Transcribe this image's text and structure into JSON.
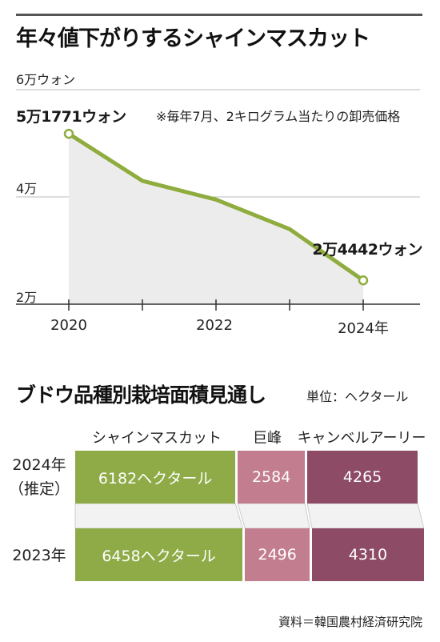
{
  "line_chart": {
    "title": "年々値下がりするシャインマスカット",
    "note": "※毎年7月、2キログラム当たりの卸売価格",
    "unit_label": "6万ウォン",
    "ytick_labels": [
      "4万",
      "2万"
    ],
    "xtick_labels": [
      "2020",
      "2022",
      "2024年"
    ],
    "start_label": "5万1771ウォン",
    "end_label": "2万4442ウォン",
    "line_color": "#8fac3e",
    "fill_color": "#ececec"
  },
  "bar_chart": {
    "title": "ブドウ品種別栽培面積見通し",
    "unit": "単位：ヘクタール",
    "column_headers": [
      "シャインマスカット",
      "巨峰",
      "キャンベルアーリー"
    ],
    "row_labels": [
      "2024年\n（推定）",
      "2023年"
    ],
    "rows": [
      {
        "labels": [
          "6182ヘクタール",
          "2584",
          "4265"
        ]
      },
      {
        "labels": [
          "6458ヘクタール",
          "2496",
          "4310"
        ]
      }
    ],
    "colors": {
      "shine": "#8fab47",
      "kyoho": "#c27d8f",
      "campbell": "#8e4b66"
    },
    "source": "資料＝韓国農村経済研究院"
  },
  "chart_data": [
    {
      "type": "area",
      "title": "年々値下がりするシャインマスカット",
      "x": [
        2020,
        2021,
        2022,
        2023,
        2024
      ],
      "series": [
        {
          "values": [
            51771,
            43000,
            39500,
            34000,
            24442
          ]
        }
      ],
      "ylim": [
        20000,
        60000
      ],
      "xlabel": "",
      "ylabel": "6万ウォン",
      "xticks": [
        "2020",
        "2022",
        "2024年"
      ],
      "yticks": [
        "2万",
        "4万",
        "6万ウォン"
      ],
      "annotations": [
        "5万1771ウォン",
        "2万4442ウォン",
        "※毎年7月、2キログラム当たりの卸売価格"
      ],
      "grid": "horizontal"
    },
    {
      "type": "bar",
      "title": "ブドウ品種別栽培面積見通し",
      "orientation": "horizontal-stacked",
      "categories": [
        "2024年（推定）",
        "2023年"
      ],
      "series": [
        {
          "name": "シャインマスカット",
          "values": [
            6182,
            6458
          ]
        },
        {
          "name": "巨峰",
          "values": [
            2584,
            2496
          ]
        },
        {
          "name": "キャンベルアーリー",
          "values": [
            4265,
            4310
          ]
        }
      ],
      "unit": "単位：ヘクタール"
    }
  ]
}
